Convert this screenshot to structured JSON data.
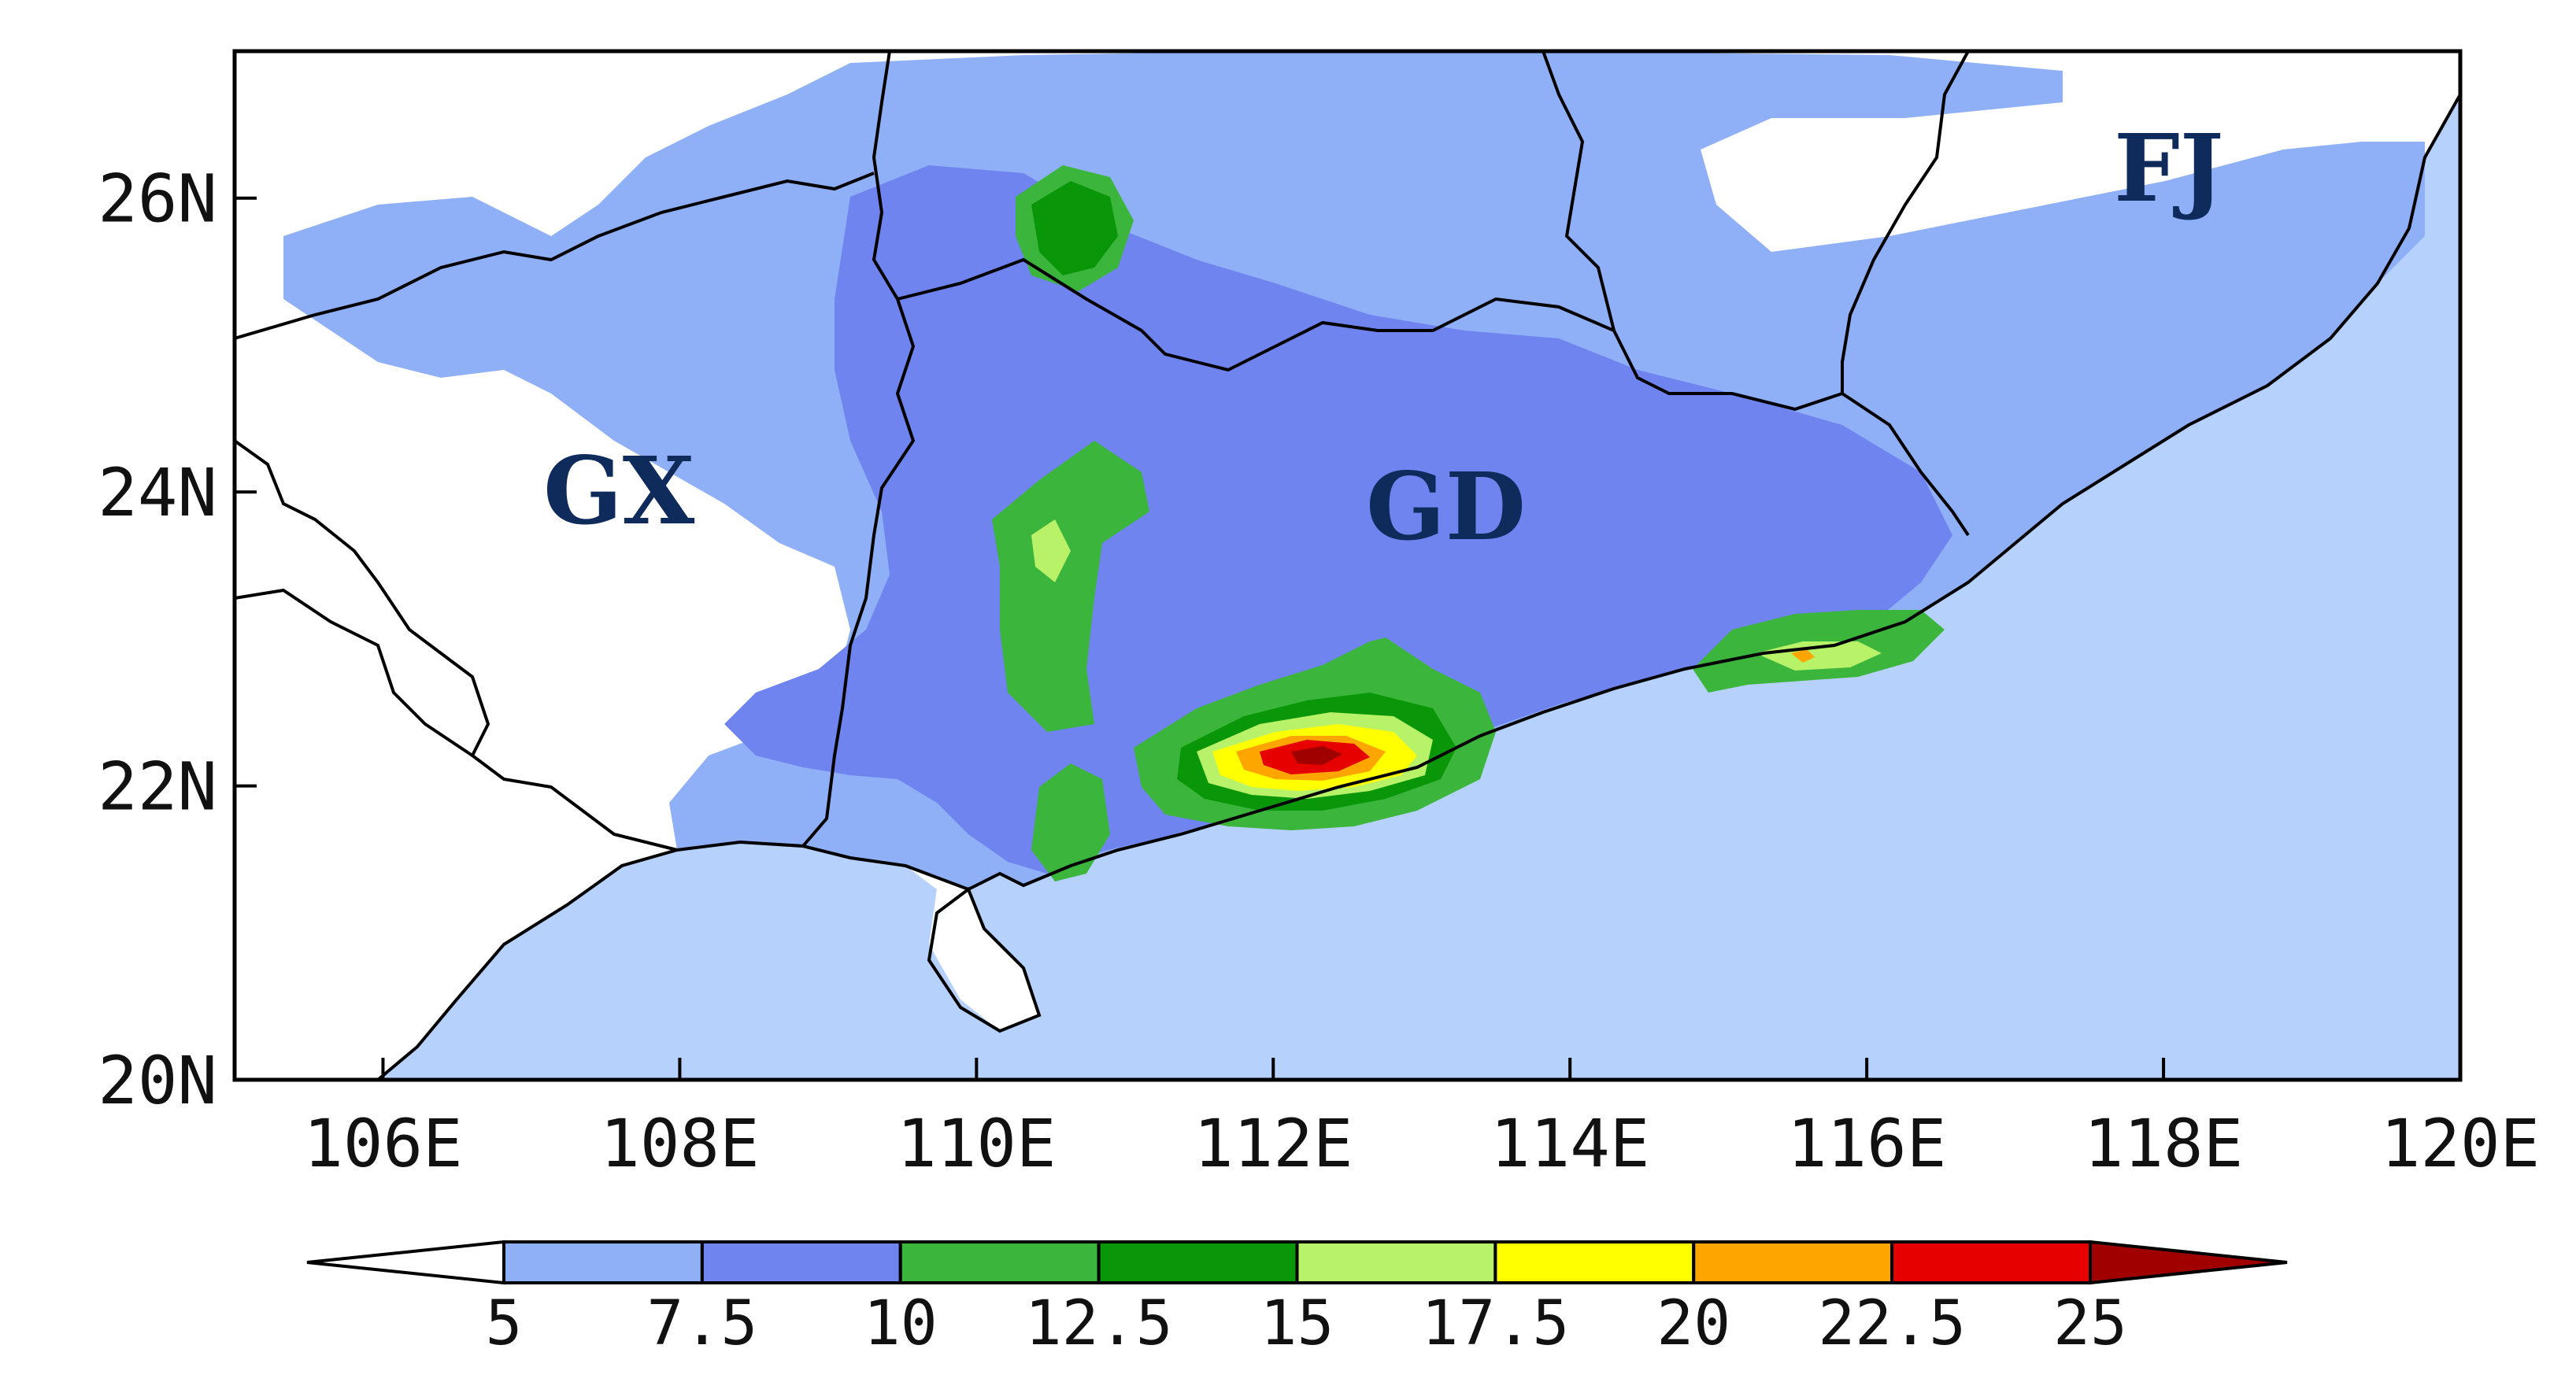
{
  "map": {
    "lat_ticks": [
      "20N",
      "22N",
      "24N",
      "26N"
    ],
    "lon_ticks": [
      "106E",
      "108E",
      "110E",
      "112E",
      "114E",
      "116E",
      "118E",
      "120E"
    ],
    "lat_range": [
      20,
      27
    ],
    "lon_range": [
      105,
      120
    ],
    "region_labels": [
      {
        "id": "gx",
        "text": "GX"
      },
      {
        "id": "gd",
        "text": "GD"
      },
      {
        "id": "fj",
        "text": "FJ"
      }
    ]
  },
  "colorbar": {
    "ticks": [
      "5",
      "7.5",
      "10",
      "12.5",
      "15",
      "17.5",
      "20",
      "22.5",
      "25"
    ],
    "under_color": "#ffffff",
    "over_color": "#a10000",
    "colors": [
      "#8fb0f7",
      "#6f84ee",
      "#3cb53c",
      "#099709",
      "#b8f268",
      "#ffff00",
      "#ffa500",
      "#e60000"
    ]
  },
  "palette": {
    "sea": "#b6d1fb",
    "land": "#ffffff",
    "outline": "#000000"
  }
}
